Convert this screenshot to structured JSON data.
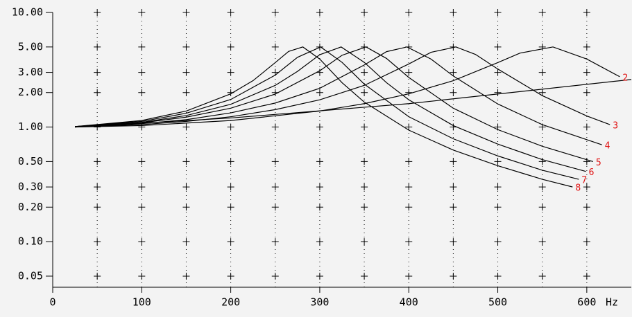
{
  "chart_data": {
    "type": "line",
    "log_y": true,
    "x_label": "Hz",
    "xlim": [
      0,
      650
    ],
    "xticks": [
      0,
      100,
      200,
      300,
      400,
      500,
      600
    ],
    "xgrid": [
      50,
      100,
      150,
      200,
      250,
      300,
      350,
      400,
      450,
      500,
      550,
      600
    ],
    "ylim": [
      0.04,
      10
    ],
    "yticks": [
      {
        "value": 10,
        "label": "10.00"
      },
      {
        "value": 5,
        "label": "5.00"
      },
      {
        "value": 3,
        "label": "3.00"
      },
      {
        "value": 2,
        "label": "2.00"
      },
      {
        "value": 1,
        "label": "1.00"
      },
      {
        "value": 0.5,
        "label": "0.50"
      },
      {
        "value": 0.3,
        "label": "0.30"
      },
      {
        "value": 0.2,
        "label": "0.20"
      },
      {
        "value": 0.1,
        "label": "0.10"
      },
      {
        "value": 0.05,
        "label": "0.05"
      }
    ],
    "grid": true,
    "label_color": "#e01010",
    "series": [
      {
        "color": "#000000",
        "x": [
          25,
          200,
          400,
          650
        ],
        "values": [
          1.0,
          1.2,
          1.6,
          2.6
        ]
      },
      {
        "name": "2",
        "color": "#000000",
        "x": [
          25,
          100,
          200,
          300,
          350,
          400,
          450,
          500,
          525,
          562,
          600,
          637
        ],
        "values": [
          1.0,
          1.03,
          1.14,
          1.38,
          1.6,
          1.95,
          2.54,
          3.65,
          4.42,
          5.0,
          3.92,
          2.75
        ]
      },
      {
        "name": "3",
        "color": "#000000",
        "x": [
          25,
          100,
          150,
          200,
          250,
          300,
          350,
          400,
          425,
          453,
          475,
          500,
          550,
          600,
          626
        ],
        "values": [
          1.0,
          1.05,
          1.12,
          1.23,
          1.42,
          1.73,
          2.31,
          3.55,
          4.49,
          5.0,
          4.3,
          3.21,
          1.88,
          1.25,
          1.05
        ]
      },
      {
        "name": "4",
        "color": "#000000",
        "x": [
          25,
          100,
          150,
          200,
          250,
          300,
          350,
          375,
          398,
          425,
          450,
          500,
          550,
          617
        ],
        "values": [
          1.0,
          1.07,
          1.16,
          1.33,
          1.62,
          2.18,
          3.48,
          4.55,
          5.0,
          3.92,
          2.79,
          1.59,
          1.05,
          0.7
        ]
      },
      {
        "name": "5",
        "color": "#000000",
        "x": [
          25,
          100,
          150,
          200,
          250,
          300,
          325,
          352,
          375,
          400,
          450,
          500,
          550,
          607
        ],
        "values": [
          1.01,
          1.09,
          1.22,
          1.46,
          1.94,
          3.1,
          4.23,
          5.0,
          3.97,
          2.71,
          1.46,
          0.95,
          0.68,
          0.5
        ]
      },
      {
        "name": "6",
        "color": "#000000",
        "x": [
          25,
          100,
          150,
          200,
          250,
          275,
          300,
          324,
          350,
          375,
          400,
          450,
          500,
          550,
          599
        ],
        "values": [
          1.01,
          1.1,
          1.26,
          1.58,
          2.31,
          3.06,
          4.28,
          5.0,
          3.67,
          2.44,
          1.73,
          1.03,
          0.71,
          0.52,
          0.41
        ]
      },
      {
        "name": "7",
        "color": "#000000",
        "x": [
          25,
          100,
          150,
          200,
          250,
          275,
          301,
          325,
          350,
          400,
          450,
          500,
          550,
          591
        ],
        "values": [
          1.01,
          1.12,
          1.32,
          1.74,
          2.84,
          4.06,
          5.0,
          3.67,
          2.37,
          1.23,
          0.79,
          0.56,
          0.42,
          0.35
        ]
      },
      {
        "name": "8",
        "color": "#000000",
        "x": [
          25,
          100,
          150,
          200,
          225,
          250,
          265,
          281,
          300,
          325,
          350,
          400,
          450,
          500,
          550,
          584
        ],
        "values": [
          1.01,
          1.14,
          1.38,
          1.95,
          2.54,
          3.65,
          4.57,
          5.0,
          3.92,
          2.44,
          1.65,
          0.94,
          0.63,
          0.46,
          0.35,
          0.3
        ]
      }
    ]
  }
}
